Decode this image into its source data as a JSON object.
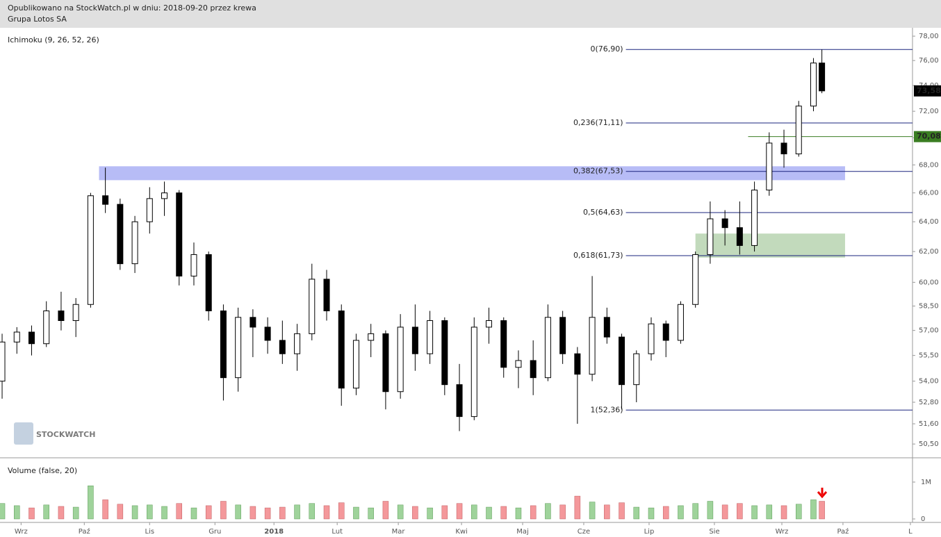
{
  "header": {
    "published": "Opublikowano na StockWatch.pl w dniu: 2018-09-20 przez krewa",
    "instrument": "Grupa Lotos SA"
  },
  "watermark": "STOCKWATCH",
  "chart_data": {
    "type": "candlestick",
    "indicator_label": "Ichimoku (9, 26, 52, 26)",
    "log_scale": true,
    "xlim": [
      0,
      433
    ],
    "xticks": [
      {
        "value": 10,
        "label": "Wrz"
      },
      {
        "value": 40,
        "label": "Paź"
      },
      {
        "value": 71,
        "label": "Lis"
      },
      {
        "value": 102,
        "label": "Gru"
      },
      {
        "value": 130,
        "label": "2018"
      },
      {
        "value": 160,
        "label": "Lut"
      },
      {
        "value": 189,
        "label": "Mar"
      },
      {
        "value": 219,
        "label": "Kwi"
      },
      {
        "value": 248,
        "label": "Maj"
      },
      {
        "value": 277,
        "label": "Cze"
      },
      {
        "value": 308,
        "label": "Lip"
      },
      {
        "value": 339,
        "label": "Sie"
      },
      {
        "value": 371,
        "label": "Wrz"
      },
      {
        "value": 400,
        "label": "Paź"
      },
      {
        "value": 432,
        "label": "L"
      }
    ],
    "ylim": [
      49.8,
      78.7
    ],
    "yticks": [
      {
        "value": 50.5,
        "label": "50,50"
      },
      {
        "value": 51.6,
        "label": "51,60"
      },
      {
        "value": 52.8,
        "label": "52,80"
      },
      {
        "value": 54,
        "label": "54,00"
      },
      {
        "value": 55.5,
        "label": "55,50"
      },
      {
        "value": 57,
        "label": "57,00"
      },
      {
        "value": 58.5,
        "label": "58,50"
      },
      {
        "value": 60,
        "label": "60,00"
      },
      {
        "value": 62,
        "label": "62,00"
      },
      {
        "value": 64,
        "label": "64,00"
      },
      {
        "value": 66,
        "label": "66,00"
      },
      {
        "value": 68,
        "label": "68,00"
      },
      {
        "value": 70,
        "label": "70,00"
      },
      {
        "value": 72,
        "label": "72,00"
      },
      {
        "value": 74,
        "label": "74,00"
      },
      {
        "value": 76,
        "label": "76,00"
      },
      {
        "value": 78,
        "label": "78,00"
      }
    ],
    "up_color": "#ffffff",
    "down_color": "#000000",
    "candles": {
      "x": [
        1,
        8,
        15,
        22,
        29,
        36,
        43,
        50,
        57,
        64,
        71,
        78,
        85,
        92,
        99,
        106,
        113,
        120,
        127,
        134,
        141,
        148,
        155,
        162,
        169,
        176,
        183,
        190,
        197,
        204,
        211,
        218,
        225,
        232,
        239,
        246,
        253,
        260,
        267,
        274,
        281,
        288,
        295,
        302,
        309,
        316,
        323,
        330,
        337,
        344,
        351,
        358,
        365,
        372,
        379,
        386,
        390
      ],
      "open": [
        54,
        56.3,
        56.9,
        56.2,
        58.2,
        57.6,
        58.6,
        65.8,
        65.2,
        61.2,
        64,
        65.6,
        66,
        60.4,
        61.8,
        58.2,
        54.2,
        57.8,
        57.2,
        56.4,
        55.6,
        56.8,
        60.2,
        58.2,
        53.6,
        56.4,
        56.8,
        53.4,
        57.2,
        55.6,
        57.6,
        53.8,
        52,
        57.2,
        57.6,
        54.8,
        55.2,
        54.2,
        57.8,
        55.6,
        54.4,
        57.8,
        56.6,
        53.8,
        55.6,
        57.4,
        56.4,
        58.6,
        61.8,
        64.2,
        63.6,
        62.4,
        66.2,
        69.6,
        68.8,
        72.4,
        75.8
      ],
      "high": [
        56.8,
        57.2,
        57.3,
        58.8,
        59.4,
        59,
        66,
        67.8,
        65.6,
        64.4,
        66.4,
        66.8,
        66.2,
        62.6,
        62,
        58.6,
        58.4,
        58.3,
        57.8,
        57.6,
        57.4,
        61.2,
        60.8,
        58.6,
        56.8,
        57.4,
        57,
        58,
        58.6,
        58.2,
        57.8,
        55,
        57.8,
        58.4,
        57.8,
        55.8,
        56.4,
        58.6,
        58.2,
        56,
        60.4,
        58.4,
        56.8,
        55.8,
        57.8,
        57.6,
        58.8,
        62,
        65.4,
        64.8,
        65.4,
        66.8,
        70.4,
        70.6,
        72.8,
        76.2,
        76.9
      ],
      "low": [
        53,
        55.6,
        55.5,
        56,
        57,
        56.6,
        58.4,
        64.6,
        60.8,
        60.6,
        63.2,
        64.4,
        59.8,
        59.8,
        57.6,
        52.9,
        53.4,
        55.4,
        55.6,
        55,
        54.6,
        56.4,
        57.6,
        52.6,
        53.2,
        55.4,
        52.4,
        53,
        54.6,
        55,
        53.2,
        51.2,
        51.8,
        56.2,
        54.2,
        53.6,
        53.2,
        54,
        55,
        51.6,
        54,
        56.2,
        52.4,
        52.8,
        55.2,
        55.4,
        56.2,
        58.4,
        61.2,
        62.4,
        61.8,
        62,
        65.8,
        67.8,
        68.6,
        72,
        73.4
      ],
      "close": [
        56.3,
        56.9,
        56.2,
        58.2,
        57.6,
        58.6,
        65.8,
        65.2,
        61.2,
        64,
        65.6,
        66,
        60.4,
        61.8,
        58.2,
        54.2,
        57.8,
        57.2,
        56.4,
        55.6,
        56.8,
        60.2,
        58.2,
        53.6,
        56.4,
        56.8,
        53.4,
        57.2,
        55.6,
        57.6,
        53.8,
        52,
        57.2,
        57.6,
        54.8,
        55.2,
        54.2,
        57.8,
        55.6,
        54.4,
        57.8,
        56.6,
        53.8,
        55.6,
        57.4,
        56.4,
        58.6,
        61.8,
        64.2,
        63.6,
        62.4,
        66.2,
        69.6,
        68.8,
        72.4,
        75.8,
        73.58
      ]
    },
    "fib_levels": [
      {
        "value": 76.9,
        "label": "0(76,90)"
      },
      {
        "value": 71.11,
        "label": "0,236(71,11)"
      },
      {
        "value": 67.53,
        "label": "0,382(67,53)"
      },
      {
        "value": 64.63,
        "label": "0,5(64,63)"
      },
      {
        "value": 61.73,
        "label": "0,618(61,73)"
      },
      {
        "value": 52.36,
        "label": "1(52,36)"
      }
    ],
    "fib_color": "#1a237e",
    "fib_from_x": 297,
    "zones": [
      {
        "low": 66.9,
        "high": 67.9,
        "from_x": 47,
        "to_x": 401,
        "color": "#aab0f5"
      },
      {
        "low": 61.6,
        "high": 63.2,
        "from_x": 330,
        "to_x": 401,
        "color": "#b7d3b0"
      }
    ],
    "level": {
      "value": 70.08,
      "label": "70,08",
      "from_x": 355,
      "color": "#3a7d22"
    },
    "last_price": {
      "value": 73.58,
      "label": "73,58"
    },
    "volume": {
      "label": "Volume (false, 20)",
      "ylim": [
        0,
        1640000
      ],
      "yticks": [
        0,
        {
          "value": 1000000,
          "label": "1M"
        }
      ],
      "up_color": "#9fd39b",
      "down_color": "#f4989b",
      "values": [
        420000,
        360000,
        300000,
        380000,
        340000,
        320000,
        900000,
        520000,
        400000,
        360000,
        380000,
        340000,
        420000,
        300000,
        360000,
        480000,
        380000,
        340000,
        300000,
        320000,
        380000,
        420000,
        360000,
        440000,
        320000,
        300000,
        480000,
        380000,
        340000,
        300000,
        360000,
        420000,
        380000,
        320000,
        340000,
        300000,
        360000,
        420000,
        380000,
        620000,
        460000,
        380000,
        440000,
        320000,
        300000,
        340000,
        360000,
        420000,
        480000,
        380000,
        420000,
        360000,
        380000,
        360000,
        400000,
        520000,
        480000
      ]
    }
  }
}
